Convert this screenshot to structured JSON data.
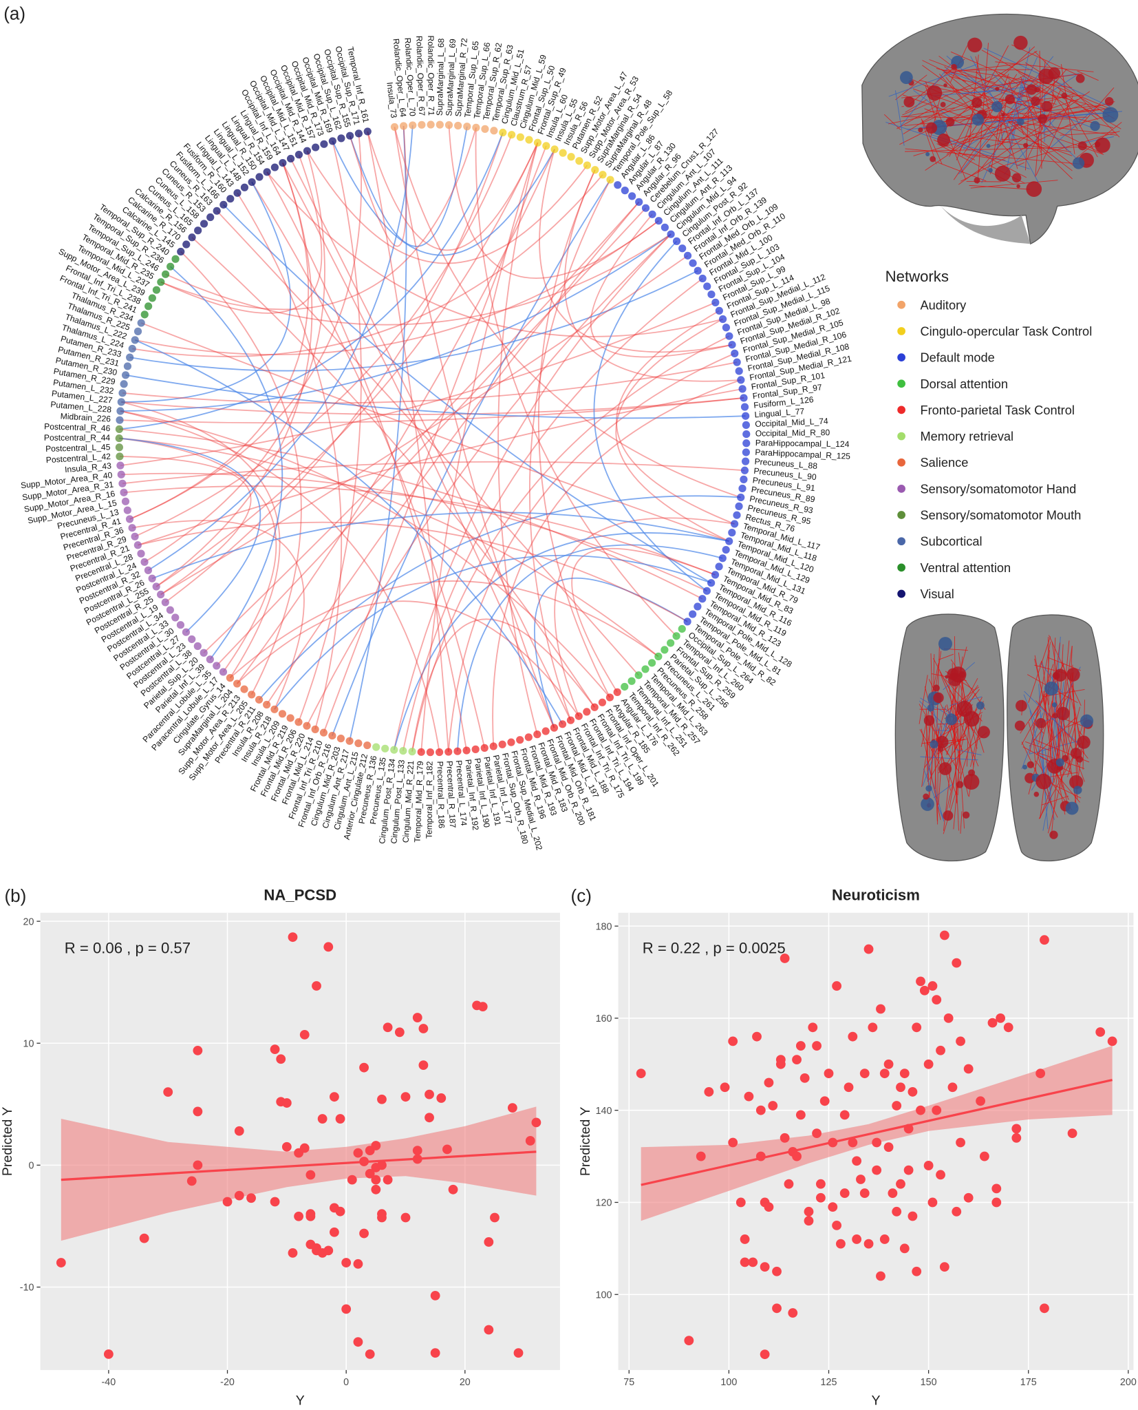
{
  "chart_data": [
    {
      "type": "chord",
      "panel_label": "(a)",
      "legend_title": "Networks",
      "networks": [
        {
          "name": "Auditory",
          "color": "#f2a469"
        },
        {
          "name": "Cingulo-opercular Task Control",
          "color": "#f2cf1d"
        },
        {
          "name": "Default mode",
          "color": "#2a3fd6"
        },
        {
          "name": "Dorsal attention",
          "color": "#3fbf3f"
        },
        {
          "name": "Fronto-parietal Task Control",
          "color": "#ee2a2a"
        },
        {
          "name": "Memory retrieval",
          "color": "#a3dd6b"
        },
        {
          "name": "Salience",
          "color": "#e8663c"
        },
        {
          "name": "Sensory/somatomotor Hand",
          "color": "#9a5ab0"
        },
        {
          "name": "Sensory/somatomotor Mouth",
          "color": "#5e8f3a"
        },
        {
          "name": "Subcortical",
          "color": "#4a67a8"
        },
        {
          "name": "Ventral attention",
          "color": "#2a8f2a"
        },
        {
          "name": "Visual",
          "color": "#141470"
        }
      ],
      "groups": [
        {
          "network": 0,
          "labels": [
            "Insula_73",
            "Rolandic_Oper_L_64",
            "Rolandic_Oper_L_70",
            "Rolandic_Oper_R_67",
            "Rolandic_Oper_R_71",
            "SupraMarginal_L_68",
            "SupraMarginal_L_69",
            "SupraMarginal_R_72",
            "Temporal_Sup_L_65",
            "Temporal_Sup_L_66",
            "Temporal_Sup_R_62",
            "Temporal_Sup_R_63"
          ]
        },
        {
          "network": 1,
          "labels": [
            "Cingulum_Mid_L_51",
            "Claustrum_R_57",
            "Cingulum_Mid_L_59",
            "Frontal_Sup_L_50",
            "Frontal_Sup_R_49",
            "Insula_L_60",
            "Insula_L_55",
            "Insula_R_56",
            "Putamen_R_52",
            "Supp_Motor_Area_L_47",
            "Supp_Motor_Area_R_53",
            "SupraMarginal_R_54",
            "SupraMarginal_R_48",
            "Temporal_Pole_Sup_L_58"
          ]
        },
        {
          "network": 2,
          "labels": [
            "Angular_L_86",
            "Angular_L_87",
            "Angular_R_130",
            "Angular_R_96",
            "Cerebelum_Crus1_R_127",
            "Cingulum_Ant_L_107",
            "Cingulum_Ant_L_111",
            "Cingulum_Ant_R_113",
            "Cingulum_Mid_L_94",
            "Cingulum_Post_R_92",
            "Frontal_Inf_Orb_L_137",
            "Frontal_Inf_Orb_R_139",
            "Frontal_Med_Orb_L_109",
            "Frontal_Med_Orb_R_110",
            "Frontal_Mid_L_100",
            "Frontal_Sup_L_103",
            "Frontal_Sup_L_104",
            "Frontal_Sup_L_99",
            "Frontal_Sup_L_114",
            "Frontal_Sup_Medial_L_112",
            "Frontal_Sup_Medial_L_115",
            "Frontal_Sup_Medial_L_98",
            "Frontal_Sup_Medial_R_102",
            "Frontal_Sup_Medial_R_105",
            "Frontal_Sup_Medial_R_106",
            "Frontal_Sup_Medial_R_108",
            "Frontal_Sup_Medial_R_121",
            "Frontal_Sup_R_101",
            "Frontal_Sup_R_97",
            "Fusiform_L_126",
            "Lingual_L_77",
            "Occipital_Mid_L_74",
            "Occipital_Mid_R_80",
            "ParaHippocampal_L_124",
            "ParaHippocampal_R_125",
            "Precuneus_L_88",
            "Precuneus_L_90",
            "Precuneus_L_91",
            "Precuneus_R_89",
            "Precuneus_R_93",
            "Precuneus_R_95",
            "Rectus_R_76",
            "Temporal_Mid_L_117",
            "Temporal_Mid_L_118",
            "Temporal_Mid_L_120",
            "Temporal_Mid_L_129",
            "Temporal_Mid_L_131",
            "Temporal_Mid_R_79",
            "Temporal_Mid_R_83",
            "Temporal_Mid_R_116",
            "Temporal_Mid_R_119",
            "Temporal_Mid_R_123",
            "Temporal_Pole_Mid_L_128",
            "Temporal_Pole_Mid_L_81",
            "Temporal_Pole_Mid_R_82"
          ]
        },
        {
          "network": 3,
          "labels": [
            "Occipital_Sup_L_264",
            "Temporal_Inf_L_260",
            "Frontal_Sup_R_259",
            "Parietal_Sup_L_256",
            "Precuneus_L_261",
            "Precuneus_R_258",
            "Temporal_Mid_L_263",
            "Temporal_Mid_R_257",
            "Temporal_Inf_L_251",
            "Temporal_Inf_R_262"
          ]
        },
        {
          "network": 4,
          "labels": [
            "Angular_L_176",
            "Angular_R_185",
            "Frontal_Inf_Oper_L_201",
            "Frontal_Inf_Tri_L_199",
            "Frontal_Inf_Tri_L_194",
            "Frontal_Inf_Tri_R_175",
            "Frontal_Mid_L_188",
            "Frontal_Mid_L_197",
            "Frontal_Mid_Orb_R_181",
            "Frontal_Mid_Orb_R_200",
            "Frontal_Mid_R_183",
            "Frontal_Mid_R_193",
            "Frontal_Mid_R_196",
            "Frontal_Sup_Medial_L_202",
            "Frontal_Sup_Orb_R_180",
            "Parietal_Inf_L_177",
            "Parietal_Inf_L_191",
            "Parietal_Inf_L_190",
            "Parietal_Inf_R_192",
            "Precentral_L_174",
            "Precentral_R_187",
            "Precentral_R_186",
            "Temporal_Inf_R_182",
            "Temporal_Mid_R_179"
          ]
        },
        {
          "network": 5,
          "labels": [
            "Cingulum_Mid_R_221",
            "Cingulum_Post_L_133",
            "Cingulum_Post_R_134",
            "Precuneus_L_135",
            "Precuneus_R_136"
          ]
        },
        {
          "network": 6,
          "labels": [
            "Anterior_Cingulate_212",
            "Cingulum_Ant_L_215",
            "Cingulum_Ant_R_217",
            "Cingulum_Mid_R_203",
            "Frontal_Inf_Orb_R_216",
            "Frontal_Inf_Tri_R_210",
            "Frontal_Mid_L_214",
            "Frontal_Mid_R_220",
            "Frontal_Mid_R_206",
            "Frontal_Mid_R_219",
            "Insula_L_209",
            "Insula_R_218",
            "Insula_R_208",
            "Precentral_R_211",
            "Supp_Motor_Area_L_205",
            "Supp_Motor_Area_R_213",
            "SupraMarginal_L_204",
            "Cingulate_Gyrus_14"
          ]
        },
        {
          "network": 7,
          "labels": [
            "Paracentral_Lobule_L_17",
            "Paracentral_Lobule_L_35",
            "Parietal_Inf_L_39",
            "Parietal_Sup_L_20",
            "Postcentral_L_38",
            "Postcentral_L_23",
            "Postcentral_L_27",
            "Postcentral_L_30",
            "Postcentral_L_33",
            "Postcentral_L_34",
            "Postcentral_L_19",
            "Postcentral_R_25",
            "Postcentral_L_255",
            "Postcentral_R_26",
            "Postcentral_R_32",
            "Postcentral_L_24",
            "Precentral_L_28",
            "Precentral_R_21",
            "Precentral_R_29",
            "Precentral_R_36",
            "Precentral_R_41",
            "Precuneus_L_13",
            "Supp_Motor_Area_L_15",
            "Supp_Motor_Area_R_16",
            "Supp_Motor_Area_R_31",
            "Supp_Motor_Area_R_40",
            "Insula_R_43"
          ]
        },
        {
          "network": 8,
          "labels": [
            "Postcentral_L_42",
            "Postcentral_L_45",
            "Postcentral_R_44",
            "Postcentral_R_46"
          ]
        },
        {
          "network": 9,
          "labels": [
            "Midbrain_226",
            "Putamen_L_228",
            "Putamen_L_227",
            "Putamen_L_232",
            "Putamen_R_229",
            "Putamen_R_230",
            "Putamen_R_231",
            "Putamen_R_233",
            "Thalamus_L_224",
            "Thalamus_L_222",
            "Thalamus_R_225",
            "Thalamus_R_234"
          ]
        },
        {
          "network": 10,
          "labels": [
            "Frontal_Inf_Tri_R_241",
            "Frontal_Inf_Tri_L_238",
            "Supp_Motor_Area_L_239",
            "Temporal_Mid_L_237",
            "Temporal_Mid_R_235",
            "Temporal_Sup_L_246",
            "Temporal_Sup_R_236",
            "Temporal_Sup_R_240"
          ]
        },
        {
          "network": 11,
          "labels": [
            "Calcarine_L_145",
            "Calcarine_R_170",
            "Calcarine_R_156",
            "Cuneus_L_165",
            "Cuneus_L_158",
            "Cuneus_R_153",
            "Cuneus_R_163",
            "Fusiform_L_166",
            "Fusiform_R_160",
            "Lingual_L_143",
            "Lingual_L_148",
            "Lingual_L_152",
            "Lingual_R_150",
            "Lingual_R_154",
            "Lingual_R_159",
            "Occipital_Inf_L_164",
            "Occipital_Mid_L_147",
            "Occipital_Mid_L_151",
            "Occipital_Mid_R_144",
            "Occipital_Mid_R_157",
            "Occipital_Mid_R_173",
            "Occipital_Mid_R_169",
            "Occipital_Sup_L_162",
            "Occipital_Sup_R_155",
            "Occipital_Sup_R_171",
            "Temporal_Inf_R_161"
          ]
        }
      ]
    },
    {
      "type": "scatter",
      "panel_label": "(b)",
      "title": "NA_PCSD",
      "annotation": "R = 0.06 , p = 0.57",
      "xlabel": "Y",
      "ylabel": "Predicted Y",
      "color": "#f8434b",
      "band_color": "#f08080",
      "xlim": [
        -51.5,
        36
      ],
      "ylim": [
        -16.8,
        20.7
      ],
      "xticks": [
        -40,
        -20,
        0,
        20
      ],
      "yticks": [
        -10,
        0,
        10,
        20
      ],
      "x": [
        -48,
        -40,
        -34,
        -30,
        -25,
        -25,
        -25,
        -26,
        -20,
        -18,
        -18,
        -16,
        -12,
        -12,
        -11,
        -11,
        -10,
        -10,
        -9,
        -9,
        -8,
        -8,
        -7,
        -7,
        -6,
        -6,
        -6,
        -6,
        -5,
        -5,
        -5,
        -4,
        -4,
        -3,
        -3,
        -2,
        -2,
        -2,
        -1,
        -1,
        0,
        0,
        1,
        2,
        2,
        2,
        3,
        3,
        3,
        4,
        4,
        4,
        5,
        5,
        5,
        5,
        6,
        6,
        6,
        6,
        7,
        7,
        9,
        10,
        10,
        12,
        12,
        12,
        13,
        13,
        14,
        14,
        15,
        15,
        16,
        17,
        18,
        22,
        23,
        24,
        24,
        25,
        28,
        29,
        31,
        32
      ],
      "y": [
        -8,
        -15.5,
        -6,
        6,
        9.4,
        4.4,
        0,
        -1.3,
        -3,
        2.8,
        -2.5,
        -2.7,
        9.5,
        -3,
        8.7,
        5.2,
        5.1,
        1.5,
        18.7,
        -7.2,
        1,
        -4.2,
        10.7,
        1.4,
        -0.8,
        -4.2,
        -4,
        -6.5,
        14.7,
        -7,
        -6.8,
        -7.2,
        3.8,
        17.9,
        -7,
        5.6,
        -3.5,
        -5.5,
        3.8,
        -3.8,
        -8,
        -11.8,
        -1.2,
        1,
        -14.5,
        -8.1,
        8,
        0.3,
        -5.6,
        1.2,
        -0.7,
        -15.5,
        -1.2,
        -0.2,
        1.6,
        -2,
        -4,
        -4.3,
        0,
        5.4,
        11.3,
        -1.2,
        10.9,
        5.6,
        -4.3,
        12.1,
        1.2,
        0.5,
        11.2,
        8.2,
        5.8,
        3.9,
        -10.7,
        -15.4,
        5.5,
        1.3,
        -2,
        13.1,
        13,
        -6.3,
        -13.5,
        -4.3,
        4.7,
        -15.4,
        2,
        3.5
      ],
      "fit": {
        "x": [
          -48,
          32
        ],
        "y": [
          -1.2,
          1.1
        ]
      },
      "band": {
        "x": [
          -48,
          -30,
          -10,
          0,
          10,
          20,
          32
        ],
        "lower": [
          -6.2,
          -3.9,
          -1.8,
          -1.1,
          -0.9,
          -1.5,
          -2.5
        ],
        "upper": [
          3.8,
          1.9,
          1.1,
          1.5,
          2.2,
          3.2,
          4.8
        ]
      }
    },
    {
      "type": "scatter",
      "panel_label": "(c)",
      "title": "Neuroticism",
      "annotation": "R = 0.22 , p = 0.0025",
      "xlabel": "Y",
      "ylabel": "Predicted Y",
      "color": "#f8434b",
      "band_color": "#f08080",
      "xlim": [
        72.3,
        201.3
      ],
      "ylim": [
        83.6,
        182.9
      ],
      "xticks": [
        75,
        100,
        125,
        150,
        175,
        200
      ],
      "yticks": [
        100,
        120,
        140,
        160,
        180
      ],
      "x": [
        78,
        90,
        93,
        95,
        99,
        101,
        101,
        103,
        104,
        104,
        105,
        106,
        107,
        108,
        108,
        109,
        109,
        109,
        110,
        110,
        111,
        112,
        112,
        113,
        113,
        114,
        114,
        115,
        116,
        116,
        117,
        117,
        118,
        118,
        119,
        120,
        120,
        121,
        122,
        122,
        123,
        123,
        124,
        125,
        126,
        126,
        127,
        127,
        128,
        129,
        129,
        130,
        131,
        131,
        132,
        132,
        133,
        134,
        134,
        135,
        135,
        136,
        137,
        137,
        138,
        138,
        139,
        139,
        140,
        140,
        141,
        142,
        142,
        143,
        143,
        144,
        144,
        145,
        145,
        146,
        146,
        147,
        147,
        148,
        148,
        149,
        150,
        150,
        151,
        151,
        152,
        152,
        153,
        153,
        154,
        154,
        155,
        156,
        157,
        157,
        158,
        158,
        160,
        160,
        163,
        164,
        166,
        167,
        167,
        168,
        170,
        172,
        172,
        178,
        179,
        179,
        186,
        193,
        196
      ],
      "y": [
        148,
        90,
        130,
        144,
        145,
        133,
        155,
        120,
        112,
        107,
        143,
        107,
        156,
        140,
        130,
        120,
        106,
        87,
        146,
        119,
        141,
        105,
        97,
        151,
        150,
        173,
        134,
        124,
        131,
        96,
        151,
        130,
        154,
        139,
        147,
        118,
        116,
        158,
        154,
        135,
        124,
        121,
        142,
        148,
        133,
        119,
        167,
        115,
        111,
        139,
        122,
        145,
        156,
        133,
        129,
        112,
        125,
        148,
        122,
        175,
        111,
        158,
        133,
        127,
        162,
        104,
        148,
        112,
        150,
        132,
        122,
        141,
        118,
        145,
        124,
        148,
        110,
        136,
        127,
        117,
        144,
        158,
        105,
        168,
        140,
        166,
        150,
        128,
        167,
        120,
        164,
        140,
        153,
        126,
        178,
        106,
        160,
        145,
        172,
        118,
        155,
        133,
        121,
        149,
        142,
        130,
        159,
        123,
        120,
        160,
        158,
        136,
        134,
        148,
        177,
        97,
        135,
        157,
        155
      ],
      "fit": {
        "x": [
          78,
          196
        ],
        "y": [
          123.8,
          146.6
        ]
      },
      "band": {
        "x": [
          78,
          100,
          120,
          135,
          150,
          175,
          196
        ],
        "lower": [
          116,
          122.5,
          128.5,
          132.5,
          135.5,
          138,
          139
        ],
        "upper": [
          132,
          132.5,
          134.5,
          137,
          141,
          148,
          154
        ]
      }
    }
  ]
}
